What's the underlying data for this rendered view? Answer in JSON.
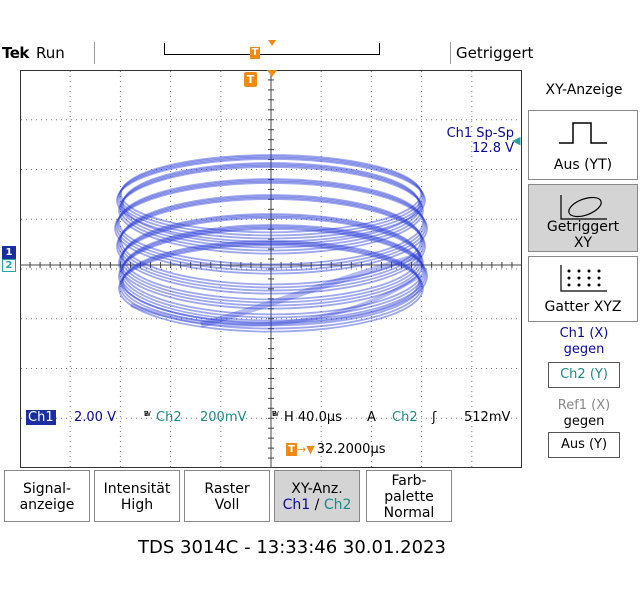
{
  "header": {
    "brand": "Tek",
    "run_state": "Run",
    "trigger_status": "Getriggert"
  },
  "scope": {
    "trigger_marker": "T",
    "measurement": {
      "label": "Ch1 Sp-Sp",
      "value": "12.8 V"
    },
    "channel_markers": {
      "ch1": "1",
      "ch2": "2"
    },
    "status": {
      "ch1_label": "Ch1",
      "ch1_scale": "2.00 V",
      "ch2_label": "Ch2",
      "ch2_scale": "200mV",
      "horizontal": "H 40.0µs",
      "trigger_mode": "A",
      "trigger_source": "Ch2",
      "trigger_slope": "ʃ",
      "trigger_level": "512mV"
    },
    "trigger_position": "32.2000µs",
    "colors": {
      "ch1": "#1b2ea0",
      "ch2": "#23a6a6",
      "trace": "#2a3bd8",
      "trigger": "#f08a12"
    }
  },
  "side_menu": {
    "title": "XY-Anzeige",
    "buttons": [
      {
        "label": "Aus (YT)",
        "icon": "yt-pulse-icon"
      },
      {
        "label": "Getriggert XY",
        "icon": "ellipse-icon"
      },
      {
        "label": "Gatter XYZ",
        "icon": "dot-grid-icon"
      }
    ],
    "ch1_vs": {
      "line1": "Ch1 (X)",
      "line2": "gegen",
      "value": "Ch2 (Y)"
    },
    "ref1_vs": {
      "line1": "Ref1 (X)",
      "line2": "gegen",
      "value": "Aus (Y)"
    }
  },
  "bottom_menu": [
    {
      "line1": "Signal-",
      "line2": "anzeige"
    },
    {
      "line1": "Intensität",
      "line2": "High"
    },
    {
      "line1": "Raster",
      "line2": "Voll"
    },
    {
      "line1": "XY-Anz.",
      "line2a": "Ch1",
      "line2b": " / ",
      "line2c": "Ch2"
    },
    {
      "line1": "Farb-",
      "line2": "palette",
      "line3": "Normal"
    }
  ],
  "footer": "TDS 3014C - 13:33:46   30.01.2023"
}
